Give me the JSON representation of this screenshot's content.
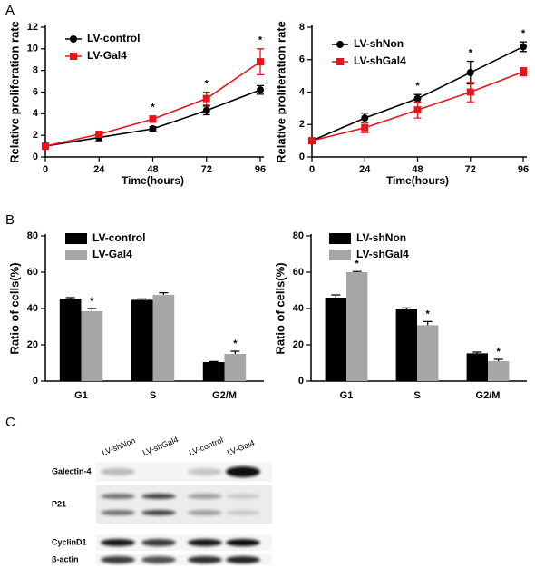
{
  "panel_labels": [
    "A",
    "B",
    "C"
  ],
  "chart_data": [
    {
      "type": "line",
      "x_label": "Time(hours)",
      "y_label": "Relative proliferation rate",
      "x": [
        0,
        24,
        48,
        72,
        96
      ],
      "xlim": [
        0,
        96
      ],
      "xticks": [
        0,
        24,
        48,
        72,
        96
      ],
      "ylim": [
        0,
        12
      ],
      "yticks": [
        0,
        2,
        4,
        6,
        8,
        10,
        12
      ],
      "legend": "upper left",
      "series": [
        {
          "name": "LV-control",
          "color": "#000000",
          "marker": "circle",
          "values": [
            1,
            1.8,
            2.6,
            4.3,
            6.2
          ],
          "errors": [
            0.1,
            0.3,
            0.2,
            0.4,
            0.4
          ]
        },
        {
          "name": "LV-Gal4",
          "color": "#e8141c",
          "marker": "square",
          "values": [
            1,
            2.1,
            3.5,
            5.4,
            8.8
          ],
          "errors": [
            0.1,
            0.2,
            0.3,
            0.6,
            1.2
          ]
        }
      ],
      "annotations": [
        {
          "text": "*",
          "x": 48
        },
        {
          "text": "*",
          "x": 72
        },
        {
          "text": "*",
          "x": 96
        }
      ]
    },
    {
      "type": "line",
      "x_label": "Time(hours)",
      "y_label": "Relative proliferation rate",
      "x": [
        0,
        24,
        48,
        72,
        96
      ],
      "xlim": [
        0,
        96
      ],
      "xticks": [
        0,
        24,
        48,
        72,
        96
      ],
      "ylim": [
        0,
        8
      ],
      "yticks": [
        0,
        2,
        4,
        6,
        8
      ],
      "legend": "upper left",
      "series": [
        {
          "name": "LV-shNon",
          "color": "#000000",
          "marker": "circle",
          "values": [
            1,
            2.4,
            3.6,
            5.2,
            6.8
          ],
          "errors": [
            0.1,
            0.3,
            0.25,
            0.7,
            0.3
          ]
        },
        {
          "name": "LV-shGal4",
          "color": "#e8141c",
          "marker": "square",
          "values": [
            1,
            1.8,
            2.9,
            4.0,
            5.25
          ],
          "errors": [
            0.1,
            0.3,
            0.5,
            0.6,
            0.25
          ]
        }
      ],
      "annotations": [
        {
          "text": "*",
          "x": 48
        },
        {
          "text": "*",
          "x": 72
        },
        {
          "text": "*",
          "x": 96
        }
      ]
    },
    {
      "type": "bar",
      "y_label": "Ratio of cells(%)",
      "categories": [
        "G1",
        "S",
        "G2/M"
      ],
      "ylim": [
        0,
        80
      ],
      "yticks": [
        0,
        20,
        40,
        60,
        80
      ],
      "legend": "upper left",
      "series": [
        {
          "name": "LV-control",
          "color": "#000000",
          "values": [
            45.5,
            44.8,
            10.5
          ],
          "errors": [
            0.5,
            0.5,
            0.3
          ]
        },
        {
          "name": "LV-Gal4",
          "color": "#a6a6a6",
          "values": [
            38.5,
            47.5,
            15
          ],
          "errors": [
            1.5,
            1.2,
            1.5
          ]
        }
      ],
      "annotations": [
        {
          "text": "*",
          "category": 0,
          "series": 1
        },
        {
          "text": "*",
          "category": 2,
          "series": 1
        }
      ]
    },
    {
      "type": "bar",
      "y_label": "Ratio of cells(%)",
      "categories": [
        "G1",
        "S",
        "G2/M"
      ],
      "ylim": [
        0,
        80
      ],
      "yticks": [
        0,
        20,
        40,
        60,
        80
      ],
      "legend": "upper right",
      "series": [
        {
          "name": "LV-shNon",
          "color": "#000000",
          "values": [
            46,
            39.5,
            15.3
          ],
          "errors": [
            1.5,
            0.8,
            0.7
          ]
        },
        {
          "name": "LV-shGal4",
          "color": "#a6a6a6",
          "values": [
            60,
            30.8,
            11
          ],
          "errors": [
            0.4,
            2,
            1
          ]
        }
      ],
      "annotations": [
        {
          "text": "*",
          "category": 0,
          "series": 1
        },
        {
          "text": "*",
          "category": 1,
          "series": 1
        },
        {
          "text": "*",
          "category": 2,
          "series": 1
        }
      ]
    }
  ],
  "blot": {
    "lanes": [
      "LV-shNon",
      "LV-shGal4",
      "LV-control",
      "LV-Gal4"
    ],
    "rows": [
      "Galectin-4",
      "P21",
      "CyclinD1",
      "β-actin"
    ]
  }
}
